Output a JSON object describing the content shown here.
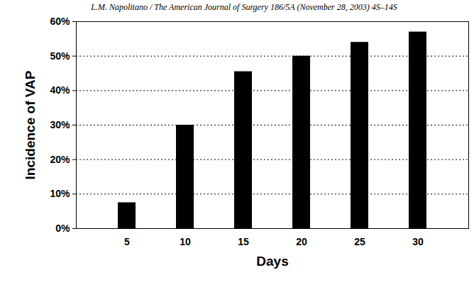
{
  "chart_data": {
    "type": "bar",
    "title": "L.M. Napolitano / The American Journal of Surgery 186/5A (November 28, 2003) 4S–14S",
    "xlabel": "Days",
    "ylabel": "Incidence of VAP",
    "categories": [
      "5",
      "10",
      "15",
      "20",
      "25",
      "30"
    ],
    "values": [
      7.5,
      30,
      45.5,
      50,
      54,
      57
    ],
    "color": "#000000",
    "ylim": [
      0,
      60
    ],
    "yticks": [
      {
        "value": 0,
        "label": "0%"
      },
      {
        "value": 10,
        "label": "10%"
      },
      {
        "value": 20,
        "label": "20%"
      },
      {
        "value": 30,
        "label": "30%"
      },
      {
        "value": 40,
        "label": "40%"
      },
      {
        "value": 50,
        "label": "50%"
      },
      {
        "value": 60,
        "label": "60%"
      }
    ],
    "grid": true
  }
}
